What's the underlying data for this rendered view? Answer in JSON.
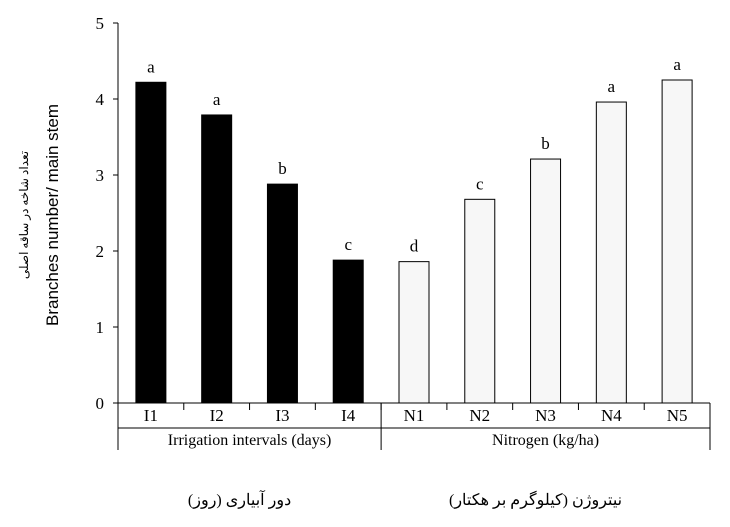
{
  "chart_data": {
    "type": "bar",
    "ylabel": "Branches number/ main stem",
    "ylabel_fa": "تعداد شاخه در ساقه اصلی",
    "ylim": [
      0,
      5
    ],
    "yticks": [
      "0",
      "1",
      "2",
      "3",
      "4",
      "5"
    ],
    "categories": [
      "I1",
      "I2",
      "I3",
      "I4",
      "N1",
      "N2",
      "N3",
      "N4",
      "N5"
    ],
    "values": [
      4.22,
      3.79,
      2.88,
      1.88,
      1.86,
      2.68,
      3.21,
      3.96,
      4.25
    ],
    "letters": [
      "a",
      "a",
      "b",
      "c",
      "d",
      "c",
      "b",
      "a",
      "a"
    ],
    "groups": [
      {
        "label": "Irrigation intervals (days)",
        "label_fa": "دور آبیاری (روز)",
        "count": 4,
        "fill": "#000000"
      },
      {
        "label": "Nitrogen (kg/ha)",
        "label_fa": "نیتروژن (کیلوگرم بر هکتار)",
        "count": 5,
        "fill": "#f7f7f7"
      }
    ]
  }
}
